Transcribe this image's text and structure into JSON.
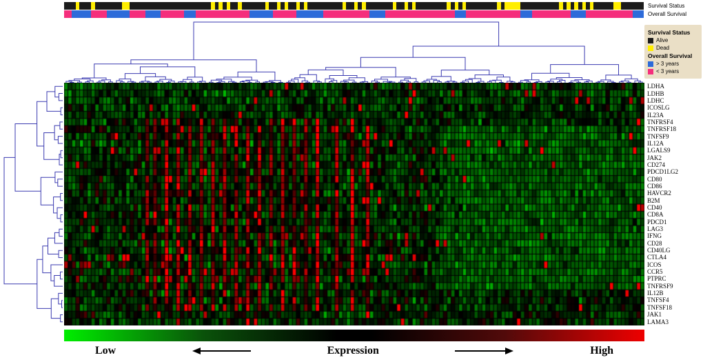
{
  "figure": {
    "background": "#ffffff"
  },
  "icons": {
    "left_arrow": "left-arrow",
    "right_arrow": "right-arrow"
  },
  "chart_data": {
    "type": "heatmap",
    "n_samples": 150,
    "genes": [
      "LDHA",
      "LDHB",
      "LDHC",
      "ICOSLG",
      "IL23A",
      "TNFRSF4",
      "TNFRSF18",
      "TNFSF9",
      "IL12A",
      "LGALS9",
      "JAK2",
      "CD274",
      "PDCD1LG2",
      "CD80",
      "CD86",
      "HAVCR2",
      "B2M",
      "CD40",
      "CD8A",
      "PDCD1",
      "LAG3",
      "IFNG",
      "CD28",
      "CD40LG",
      "CTLA4",
      "ICOS",
      "CCR5",
      "PTPRC",
      "TNFRSF9",
      "IL12B",
      "TNFSF4",
      "TNFSF18",
      "JAK1",
      "LAMA3"
    ],
    "colormap": {
      "low": "#00ee00",
      "mid": "#000000",
      "high": "#ee0000"
    },
    "colorbar": {
      "left_label": "Low",
      "center_label": "Expression",
      "right_label": "High"
    },
    "annotation_tracks": [
      {
        "name": "Survival Status",
        "categories": {
          "A": {
            "label": "Alive",
            "color": "#1b1b1b"
          },
          "D": {
            "label": "Dead",
            "color": "#ffee00"
          }
        },
        "dead_indices": [
          3,
          7,
          15,
          16,
          38,
          40,
          42,
          45,
          52,
          55,
          57,
          60,
          62,
          72,
          75,
          77,
          85,
          88,
          90,
          99,
          101,
          103,
          112,
          114,
          115,
          116,
          117,
          128,
          130,
          132,
          134,
          136,
          142,
          143
        ]
      },
      {
        "name": "Overall Survival",
        "categories": {
          "B": {
            "label": "> 3 years",
            "color": "#2d6bd9"
          },
          "P": {
            "label": "< 3 years",
            "color": "#f52e7c"
          }
        },
        "runs": [
          [
            "P",
            2
          ],
          [
            "B",
            5
          ],
          [
            "P",
            4
          ],
          [
            "B",
            6
          ],
          [
            "P",
            4
          ],
          [
            "B",
            4
          ],
          [
            "P",
            6
          ],
          [
            "B",
            3
          ],
          [
            "P",
            14
          ],
          [
            "B",
            6
          ],
          [
            "P",
            6
          ],
          [
            "B",
            7
          ],
          [
            "P",
            12
          ],
          [
            "B",
            4
          ],
          [
            "P",
            18
          ],
          [
            "B",
            3
          ],
          [
            "P",
            14
          ],
          [
            "B",
            3
          ],
          [
            "P",
            10
          ],
          [
            "B",
            4
          ],
          [
            "P",
            12
          ],
          [
            "B",
            3
          ]
        ]
      }
    ],
    "legend": {
      "background": "#eadfc6",
      "sections": [
        {
          "title": "Survival Status",
          "items": [
            {
              "label": "Alive",
              "color": "#1b1b1b"
            },
            {
              "label": "Dead",
              "color": "#ffee00"
            }
          ]
        },
        {
          "title": "Overall Survival",
          "items": [
            {
              "label": "> 3 years",
              "color": "#2d6bd9"
            },
            {
              "label": "< 3 years",
              "color": "#f52e7c"
            }
          ]
        }
      ]
    },
    "generation": {
      "seed": 1337,
      "hot_columns": [
        21,
        23,
        26,
        29,
        32,
        35,
        38,
        41,
        44,
        47,
        50,
        53,
        56,
        59,
        62,
        65,
        70,
        74,
        78
      ],
      "hot_row_range": [
        5,
        31
      ],
      "green_block": {
        "cols": [
          97,
          149
        ],
        "rows": [
          6,
          28
        ]
      },
      "red_bias_rows": [
        24,
        25,
        26,
        27
      ]
    },
    "dendrogram": {
      "color": "#3a3ab0",
      "top_seed": 9,
      "left_seed": 5
    }
  }
}
